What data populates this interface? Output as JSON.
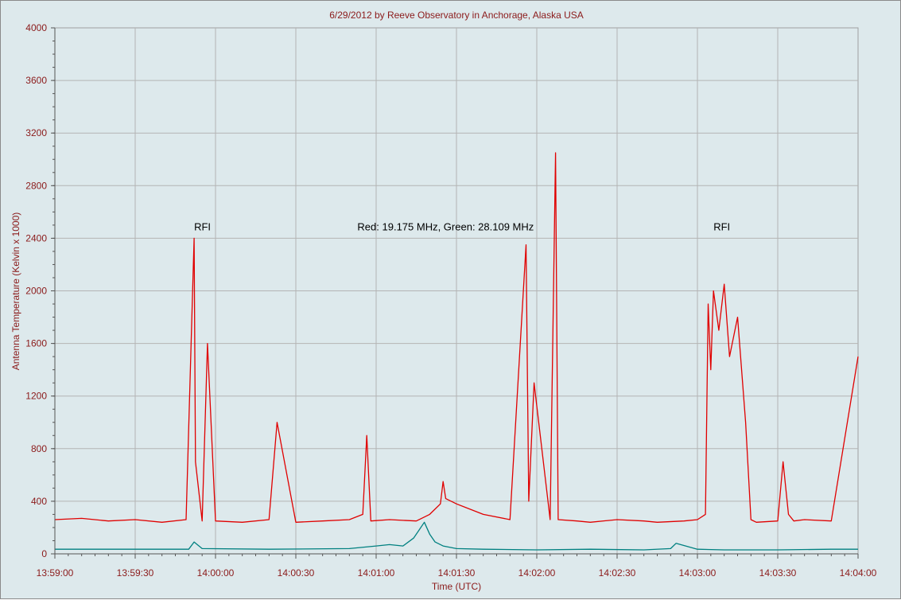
{
  "chart_data": {
    "type": "line",
    "title": "6/29/2012  by  Reeve Observatory  in  Anchorage, Alaska  USA",
    "xlabel": "Time (UTC)",
    "ylabel": "Antenna Temperature (Kelvin x 1000)",
    "ylim": [
      0,
      4000
    ],
    "yticks": [
      0,
      400,
      800,
      1200,
      1600,
      2000,
      2400,
      2800,
      3200,
      3600,
      4000
    ],
    "ytick_labels": [
      "0",
      "400",
      "800",
      "1200",
      "1600",
      "2000",
      "2400",
      "2800",
      "3200",
      "3600",
      "4000"
    ],
    "xlim_seconds": [
      0,
      300
    ],
    "xticks": [
      0,
      30,
      60,
      90,
      120,
      150,
      180,
      210,
      240,
      270,
      300
    ],
    "xtick_labels": [
      "13:59:00",
      "13:59:30",
      "14:00:00",
      "14:00:30",
      "14:01:00",
      "14:01:30",
      "14:02:00",
      "14:02:30",
      "14:03:00",
      "14:03:30",
      "14:04:00"
    ],
    "grid": true,
    "annotations": [
      {
        "text": "RFI",
        "x": 52,
        "y": 2460
      },
      {
        "text": "Red: 19.175 MHz, Green: 28.109 MHz",
        "x": 113,
        "y": 2460
      },
      {
        "text": "RFI",
        "x": 246,
        "y": 2460
      }
    ],
    "series": [
      {
        "color": "#e00000",
        "x": [
          0,
          10,
          20,
          30,
          40,
          49,
          52,
          52.5,
          55,
          57,
          60,
          70,
          80,
          83,
          90,
          100,
          110,
          115,
          116.5,
          118,
          125,
          135,
          140,
          144,
          145,
          146,
          150,
          160,
          170,
          176,
          177,
          179,
          185,
          187,
          188,
          195,
          200,
          210,
          220,
          225,
          235,
          240,
          243,
          244,
          245,
          246,
          248,
          250,
          252,
          255,
          258,
          260,
          262,
          270,
          272,
          274,
          276,
          280,
          290,
          300
        ],
        "y": [
          260,
          270,
          250,
          260,
          240,
          260,
          2400,
          700,
          250,
          1600,
          250,
          240,
          260,
          1000,
          240,
          250,
          260,
          300,
          900,
          250,
          260,
          250,
          300,
          380,
          550,
          420,
          380,
          300,
          260,
          2350,
          400,
          1300,
          260,
          3050,
          260,
          250,
          240,
          260,
          250,
          240,
          250,
          260,
          300,
          1900,
          1400,
          2000,
          1700,
          2050,
          1500,
          1800,
          1000,
          260,
          240,
          250,
          700,
          300,
          250,
          260,
          250,
          1500
        ]
      },
      {
        "color": "#008080",
        "x": [
          0,
          20,
          40,
          50,
          52,
          55,
          80,
          110,
          120,
          125,
          130,
          134,
          136,
          138,
          140,
          142,
          145,
          150,
          160,
          180,
          200,
          220,
          230,
          232,
          240,
          250,
          270,
          290,
          300
        ],
        "y": [
          35,
          35,
          35,
          35,
          90,
          40,
          35,
          40,
          60,
          70,
          60,
          120,
          180,
          240,
          150,
          90,
          60,
          40,
          35,
          30,
          35,
          30,
          40,
          80,
          35,
          30,
          30,
          35,
          35
        ]
      }
    ]
  }
}
